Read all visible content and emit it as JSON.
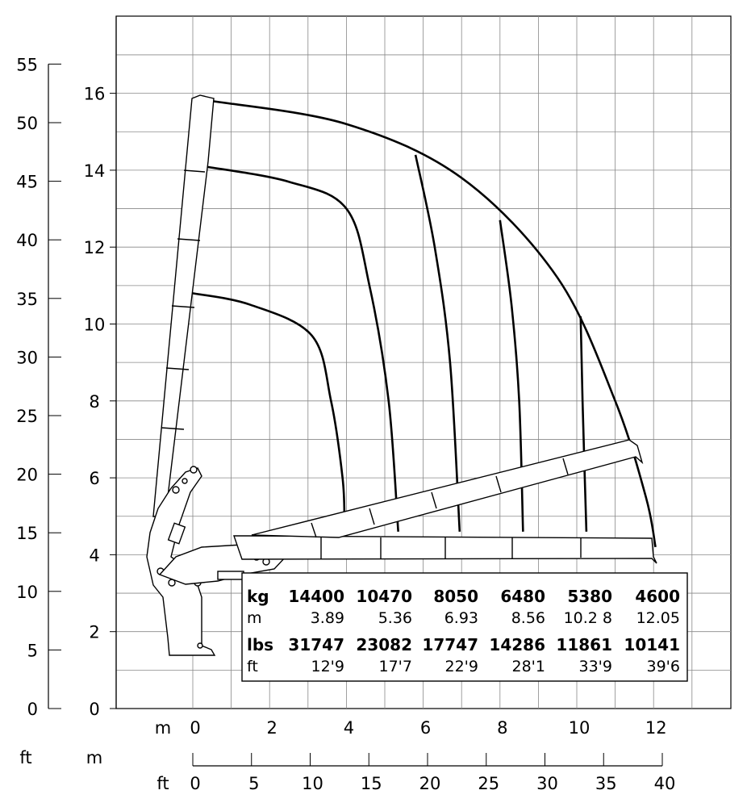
{
  "chart_data": {
    "type": "diagram",
    "description_units": {
      "x_metric": "m",
      "x_imperial": "ft",
      "y_metric_axis_label": "",
      "y_imperial_axis_label": "ft"
    },
    "x_axis_m": {
      "ticks": [
        0,
        2,
        4,
        6,
        8,
        10,
        12
      ],
      "range": [
        -2,
        14
      ]
    },
    "x_axis_ft": {
      "ticks": [
        0,
        5,
        10,
        15,
        20,
        25,
        30,
        35,
        40
      ],
      "range": [
        0,
        40
      ]
    },
    "y_axis_m": {
      "ticks": [
        0,
        2,
        4,
        6,
        8,
        10,
        12,
        14,
        16
      ],
      "range": [
        0,
        18
      ]
    },
    "y_axis_ft": {
      "ticks": [
        0,
        5,
        10,
        15,
        20,
        25,
        30,
        35,
        40,
        45,
        50,
        55
      ],
      "range": [
        0,
        55
      ]
    },
    "labels": {
      "m_row_left": "m",
      "ft_row_left": "ft",
      "m_row_mid": "m",
      "ft_corner": "ft"
    },
    "load_table": {
      "kg_label": "kg",
      "kg": [
        "14400",
        "10470",
        "8050",
        "6480",
        "5380",
        "4600"
      ],
      "m_label": "m",
      "m": [
        "3.89",
        "5.36",
        "6.93",
        "8.56",
        "10.2 8",
        "12.05"
      ],
      "lbs_label": "lbs",
      "lbs": [
        "31747",
        "23082",
        "17747",
        "14286",
        "11861",
        "10141"
      ],
      "ft_label": "ft",
      "ft": [
        "12'9",
        "17'7",
        "22'9",
        "28'1",
        "33'9",
        "39'6"
      ]
    },
    "reach_curves_m": [
      {
        "name": "",
        "points": [
          [
            0,
            10.8
          ],
          [
            1.5,
            10.5
          ],
          [
            3.1,
            9.7
          ],
          [
            3.6,
            8.0
          ],
          [
            3.9,
            6.0
          ],
          [
            3.95,
            4.9
          ]
        ]
      },
      {
        "name": "",
        "points": [
          [
            0.3,
            14.1
          ],
          [
            2.5,
            13.7
          ],
          [
            4.0,
            13.0
          ],
          [
            4.6,
            11.0
          ],
          [
            5.1,
            8.0
          ],
          [
            5.35,
            4.6
          ]
        ]
      },
      {
        "name": "",
        "points": [
          [
            5.8,
            14.4
          ],
          [
            6.3,
            12.0
          ],
          [
            6.7,
            9.0
          ],
          [
            6.95,
            4.6
          ]
        ]
      },
      {
        "name": "",
        "points": [
          [
            8.0,
            12.7
          ],
          [
            8.3,
            10.5
          ],
          [
            8.5,
            8.0
          ],
          [
            8.6,
            4.6
          ]
        ]
      },
      {
        "name": "",
        "points": [
          [
            10.1,
            10.2
          ],
          [
            10.15,
            8.0
          ],
          [
            10.25,
            4.6
          ]
        ]
      },
      {
        "name": "",
        "points": [
          [
            0.5,
            15.8
          ],
          [
            4.0,
            15.2
          ],
          [
            7.0,
            13.8
          ],
          [
            9.5,
            11.2
          ],
          [
            11.0,
            8.0
          ],
          [
            11.8,
            5.5
          ],
          [
            12.05,
            4.2
          ]
        ]
      }
    ]
  }
}
